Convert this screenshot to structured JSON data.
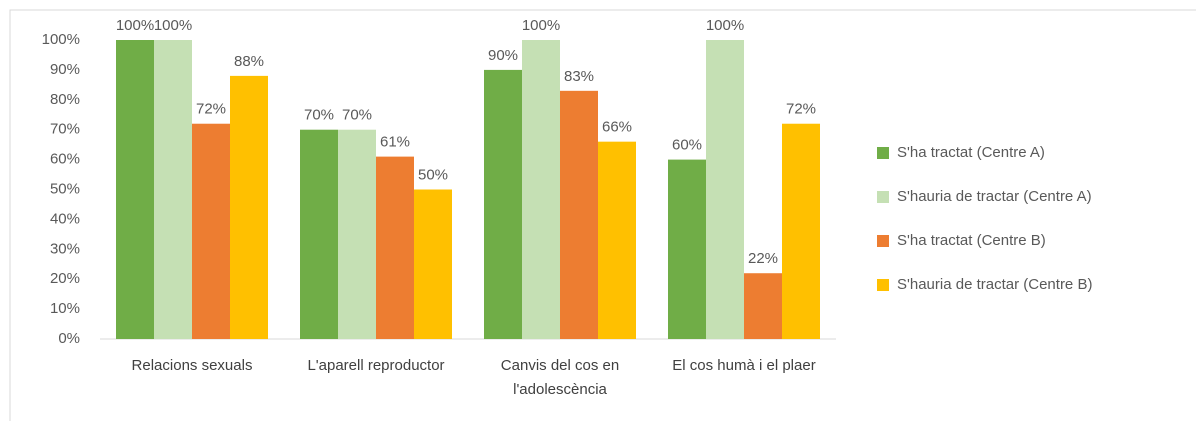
{
  "chart_data": {
    "type": "bar",
    "categories": [
      "Relacions sexuals",
      "L'aparell reproductor",
      "Canvis del cos en l'adolescència",
      "El cos humà i el plaer"
    ],
    "series": [
      {
        "name": "S'ha tractat (Centre A)",
        "color": "#70ad47",
        "values": [
          100,
          70,
          90,
          60
        ],
        "value_labels": [
          "100%",
          "70%",
          "90%",
          "60%"
        ]
      },
      {
        "name": "S'hauria de tractar (Centre A)",
        "color": "#c5e0b4",
        "values": [
          100,
          70,
          100,
          100
        ],
        "value_labels": [
          "100%",
          "70%",
          "100%",
          "100%"
        ]
      },
      {
        "name": "S'ha tractat (Centre B)",
        "color": "#ed7d31",
        "values": [
          72,
          61,
          83,
          22
        ],
        "value_labels": [
          "72%",
          "61%",
          "83%",
          "22%"
        ]
      },
      {
        "name": "S'hauria de tractar (Centre B)",
        "color": "#ffc000",
        "values": [
          88,
          50,
          66,
          72
        ],
        "value_labels": [
          "88%",
          "50%",
          "66%",
          "72%"
        ]
      }
    ],
    "ylim": [
      0,
      100
    ],
    "yticks": [
      {
        "value": 0,
        "label": "0%"
      },
      {
        "value": 10,
        "label": "10%"
      },
      {
        "value": 20,
        "label": "20%"
      },
      {
        "value": 30,
        "label": "30%"
      },
      {
        "value": 40,
        "label": "40%"
      },
      {
        "value": 50,
        "label": "50%"
      },
      {
        "value": 60,
        "label": "60%"
      },
      {
        "value": 70,
        "label": "70%"
      },
      {
        "value": 80,
        "label": "80%"
      },
      {
        "value": 90,
        "label": "90%"
      },
      {
        "value": 100,
        "label": "100%"
      }
    ],
    "grid": false,
    "legend": "right"
  }
}
